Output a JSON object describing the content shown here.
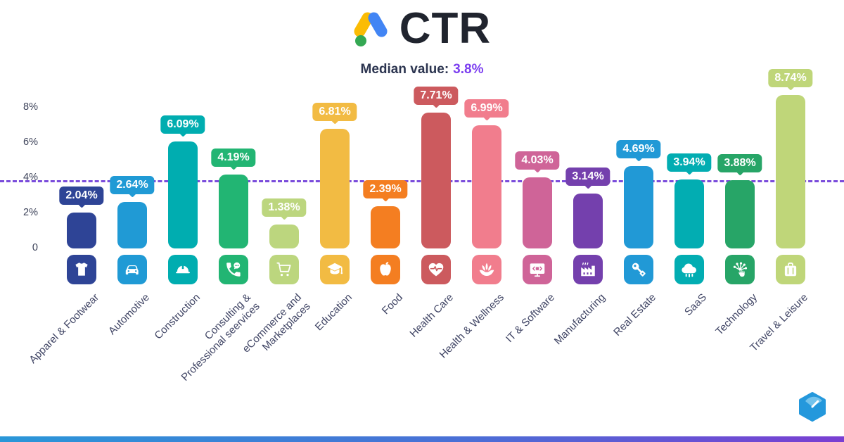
{
  "header": {
    "title": "CTR",
    "subtitle_label": "Median value:",
    "subtitle_value": "3.8%",
    "subtitle_value_color": "#7c3ff0",
    "google_ads_logo_colors": {
      "yellow": "#fbbc04",
      "blue": "#4285f4",
      "green": "#34a853"
    }
  },
  "chart_data": {
    "type": "bar",
    "title": "CTR",
    "xlabel": "",
    "ylabel": "",
    "ylim": [
      0,
      9
    ],
    "grid": false,
    "yticks": [
      {
        "label": "0",
        "value": 0
      },
      {
        "label": "2%",
        "value": 2
      },
      {
        "label": "4%",
        "value": 4
      },
      {
        "label": "6%",
        "value": 6
      },
      {
        "label": "8%",
        "value": 8
      }
    ],
    "median": {
      "value": 3.8,
      "line_color": "#7a4cdb"
    },
    "categories": [
      "Apparel & Footwear",
      "Automotive",
      "Construction",
      "Consulting & Professional seervices",
      "eCommerce and Marketplaces",
      "Education",
      "Food",
      "Health Care",
      "Health & Wellness",
      "IT & Software",
      "Manufacturing",
      "Real Estate",
      "SaaS",
      "Technology",
      "Travel & Leisure"
    ],
    "display_labels": [
      "Apparel & Footwear",
      "Automotive",
      "Construction",
      "Consulting &\nProfessional seervices",
      "eCommerce and\nMarketplaces",
      "Education",
      "Food",
      "Health Care",
      "Health & Wellness",
      "IT & Software",
      "Manufacturing",
      "Real Estate",
      "SaaS",
      "Technology",
      "Travel & Leisure"
    ],
    "values": [
      2.04,
      2.64,
      6.09,
      4.19,
      1.38,
      6.81,
      2.39,
      7.71,
      6.99,
      4.03,
      3.14,
      4.69,
      3.94,
      3.88,
      8.74
    ],
    "value_labels": [
      "2.04%",
      "2.64%",
      "6.09%",
      "4.19%",
      "1.38%",
      "6.81%",
      "2.39%",
      "7.71%",
      "6.99%",
      "4.03%",
      "3.14%",
      "4.69%",
      "3.94%",
      "3.88%",
      "8.74%"
    ],
    "bar_colors": [
      "#2e4496",
      "#209ad5",
      "#00adb0",
      "#22b573",
      "#bcd67e",
      "#f2bb43",
      "#f47e21",
      "#cc5a5e",
      "#f17d8d",
      "#cf6498",
      "#7440ad",
      "#2199d6",
      "#02adb2",
      "#27a567",
      "#bfd679"
    ],
    "icon_names": [
      "tshirt-icon",
      "car-icon",
      "hardhat-icon",
      "phone-chat-icon",
      "cart-icon",
      "graduation-cap-icon",
      "apple-icon",
      "heart-pulse-icon",
      "lotus-icon",
      "monitor-code-icon",
      "factory-icon",
      "key-icon",
      "cloud-icon",
      "tap-network-icon",
      "suitcase-icon"
    ]
  },
  "footer": {
    "brand_logo": "gauge-hexagon",
    "brand_color": "#2498dc"
  }
}
